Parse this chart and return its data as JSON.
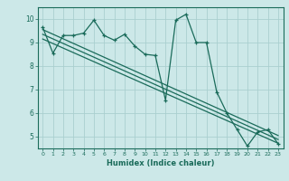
{
  "title": "",
  "xlabel": "Humidex (Indice chaleur)",
  "ylabel": "",
  "bg_color": "#cce8e8",
  "grid_color": "#aacfcf",
  "line_color": "#1a6b5a",
  "xlim": [
    -0.5,
    23.5
  ],
  "ylim": [
    4.5,
    10.5
  ],
  "xticks": [
    0,
    1,
    2,
    3,
    4,
    5,
    6,
    7,
    8,
    9,
    10,
    11,
    12,
    13,
    14,
    15,
    16,
    17,
    18,
    19,
    20,
    21,
    22,
    23
  ],
  "yticks": [
    5,
    6,
    7,
    8,
    9,
    10
  ],
  "main_x": [
    0,
    1,
    2,
    3,
    4,
    5,
    6,
    7,
    8,
    9,
    10,
    11,
    12,
    13,
    14,
    15,
    16,
    17,
    18,
    19,
    20,
    21,
    22,
    23
  ],
  "main_y": [
    9.65,
    8.55,
    9.3,
    9.3,
    9.4,
    9.95,
    9.3,
    9.1,
    9.35,
    8.85,
    8.5,
    8.45,
    6.55,
    9.95,
    10.2,
    9.0,
    9.0,
    6.9,
    6.0,
    5.3,
    4.6,
    5.2,
    5.3,
    4.7
  ],
  "line1_x": [
    0,
    23
  ],
  "line1_y": [
    9.55,
    5.05
  ],
  "line2_x": [
    0,
    23
  ],
  "line2_y": [
    9.35,
    4.88
  ],
  "line3_x": [
    0,
    23
  ],
  "line3_y": [
    9.15,
    4.72
  ]
}
